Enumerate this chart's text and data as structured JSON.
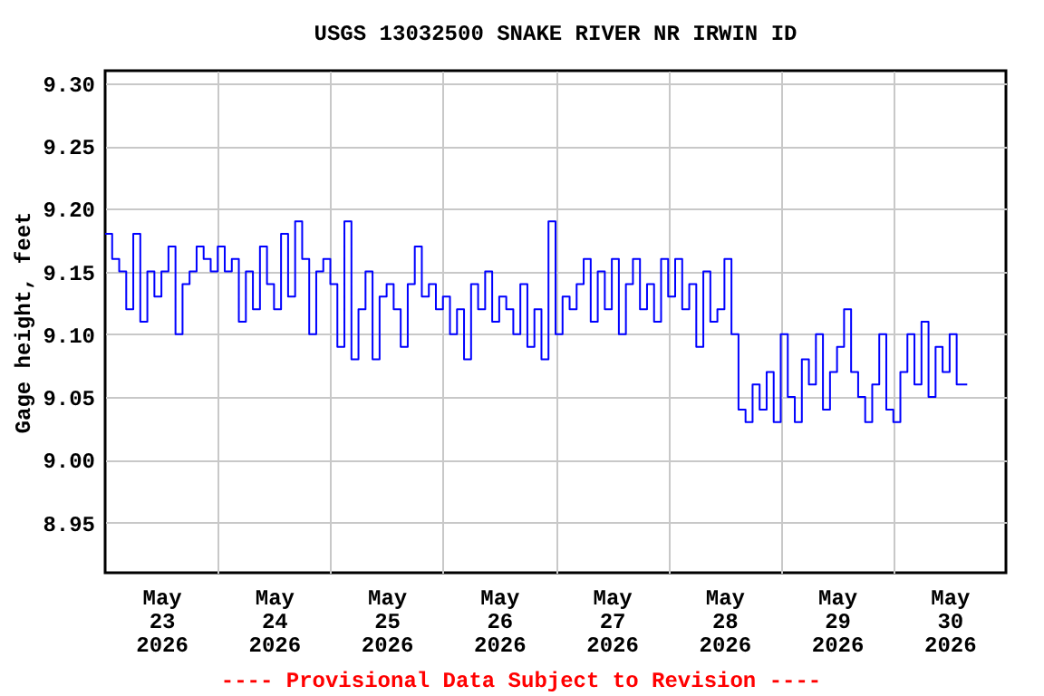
{
  "chart_data": {
    "type": "step",
    "title": "USGS 13032500 SNAKE RIVER NR IRWIN ID",
    "ylabel": "Gage height, feet",
    "annotations": [
      "---- Provisional Data Subject to Revision ----"
    ],
    "ylim": [
      8.91,
      9.31
    ],
    "yticks": [
      {
        "value": 8.95,
        "label": "8.95"
      },
      {
        "value": 9.0,
        "label": "9.00"
      },
      {
        "value": 9.05,
        "label": "9.05"
      },
      {
        "value": 9.1,
        "label": "9.10"
      },
      {
        "value": 9.15,
        "label": "9.15"
      },
      {
        "value": 9.2,
        "label": "9.20"
      },
      {
        "value": 9.25,
        "label": "9.25"
      },
      {
        "value": 9.3,
        "label": "9.30"
      }
    ],
    "xlim": [
      "2026-05-23T00:00",
      "2026-05-31T00:00"
    ],
    "xticks": [
      {
        "value": "2026-05-23T12:00",
        "label": "May\n23\n2026"
      },
      {
        "value": "2026-05-24T00:00",
        "label": null
      },
      {
        "value": "2026-05-24T12:00",
        "label": "May\n24\n2026"
      },
      {
        "value": "2026-05-25T00:00",
        "label": null
      },
      {
        "value": "2026-05-25T12:00",
        "label": "May\n25\n2026"
      },
      {
        "value": "2026-05-26T00:00",
        "label": null
      },
      {
        "value": "2026-05-26T12:00",
        "label": "May\n26\n2026"
      },
      {
        "value": "2026-05-27T00:00",
        "label": null
      },
      {
        "value": "2026-05-27T12:00",
        "label": "May\n27\n2026"
      },
      {
        "value": "2026-05-28T00:00",
        "label": null
      },
      {
        "value": "2026-05-28T12:00",
        "label": "May\n28\n2026"
      },
      {
        "value": "2026-05-29T00:00",
        "label": null
      },
      {
        "value": "2026-05-29T12:00",
        "label": "May\n29\n2026"
      },
      {
        "value": "2026-05-30T00:00",
        "label": null
      },
      {
        "value": "2026-05-30T12:00",
        "label": "May\n30\n2026"
      }
    ],
    "grid": true,
    "series": [
      {
        "color": "#0000ff",
        "x": [
          "2026-05-23T00:00",
          "2026-05-23T01:30",
          "2026-05-23T03:00",
          "2026-05-23T04:30",
          "2026-05-23T06:00",
          "2026-05-23T07:30",
          "2026-05-23T09:00",
          "2026-05-23T10:30",
          "2026-05-23T12:00",
          "2026-05-23T13:30",
          "2026-05-23T15:00",
          "2026-05-23T16:30",
          "2026-05-23T18:00",
          "2026-05-23T19:30",
          "2026-05-23T21:00",
          "2026-05-23T22:30",
          "2026-05-24T00:00",
          "2026-05-24T01:30",
          "2026-05-24T03:00",
          "2026-05-24T04:30",
          "2026-05-24T06:00",
          "2026-05-24T07:30",
          "2026-05-24T09:00",
          "2026-05-24T10:30",
          "2026-05-24T12:00",
          "2026-05-24T13:30",
          "2026-05-24T15:00",
          "2026-05-24T16:30",
          "2026-05-24T18:00",
          "2026-05-24T19:30",
          "2026-05-24T21:00",
          "2026-05-24T22:30",
          "2026-05-25T00:00",
          "2026-05-25T01:30",
          "2026-05-25T03:00",
          "2026-05-25T04:30",
          "2026-05-25T06:00",
          "2026-05-25T07:30",
          "2026-05-25T09:00",
          "2026-05-25T10:30",
          "2026-05-25T12:00",
          "2026-05-25T13:30",
          "2026-05-25T15:00",
          "2026-05-25T16:30",
          "2026-05-25T18:00",
          "2026-05-25T19:30",
          "2026-05-25T21:00",
          "2026-05-25T22:30",
          "2026-05-26T00:00",
          "2026-05-26T01:30",
          "2026-05-26T03:00",
          "2026-05-26T04:30",
          "2026-05-26T06:00",
          "2026-05-26T07:30",
          "2026-05-26T09:00",
          "2026-05-26T10:30",
          "2026-05-26T12:00",
          "2026-05-26T13:30",
          "2026-05-26T15:00",
          "2026-05-26T16:30",
          "2026-05-26T18:00",
          "2026-05-26T19:30",
          "2026-05-26T21:00",
          "2026-05-26T22:30",
          "2026-05-27T00:00",
          "2026-05-27T01:30",
          "2026-05-27T03:00",
          "2026-05-27T04:30",
          "2026-05-27T06:00",
          "2026-05-27T07:30",
          "2026-05-27T09:00",
          "2026-05-27T10:30",
          "2026-05-27T12:00",
          "2026-05-27T13:30",
          "2026-05-27T15:00",
          "2026-05-27T16:30",
          "2026-05-27T18:00",
          "2026-05-27T19:30",
          "2026-05-27T21:00",
          "2026-05-27T22:30",
          "2026-05-28T00:00",
          "2026-05-28T01:30",
          "2026-05-28T03:00",
          "2026-05-28T04:30",
          "2026-05-28T06:00",
          "2026-05-28T07:30",
          "2026-05-28T09:00",
          "2026-05-28T10:30",
          "2026-05-28T12:00",
          "2026-05-28T13:30",
          "2026-05-28T15:00",
          "2026-05-28T16:30",
          "2026-05-28T18:00",
          "2026-05-28T19:30",
          "2026-05-28T21:00",
          "2026-05-28T22:30",
          "2026-05-29T00:00",
          "2026-05-29T01:30",
          "2026-05-29T03:00",
          "2026-05-29T04:30",
          "2026-05-29T06:00",
          "2026-05-29T07:30",
          "2026-05-29T09:00",
          "2026-05-29T10:30",
          "2026-05-29T12:00",
          "2026-05-29T13:30",
          "2026-05-29T15:00",
          "2026-05-29T16:30",
          "2026-05-29T18:00",
          "2026-05-29T19:30",
          "2026-05-29T21:00",
          "2026-05-29T22:30",
          "2026-05-30T00:00",
          "2026-05-30T01:30",
          "2026-05-30T03:00",
          "2026-05-30T04:30",
          "2026-05-30T06:00",
          "2026-05-30T07:30",
          "2026-05-30T09:00",
          "2026-05-30T10:30",
          "2026-05-30T12:00",
          "2026-05-30T13:30",
          "2026-05-30T15:00",
          "2026-05-30T15:45"
        ],
        "values": [
          9.18,
          9.16,
          9.15,
          9.12,
          9.18,
          9.11,
          9.15,
          9.13,
          9.15,
          9.17,
          9.1,
          9.14,
          9.15,
          9.17,
          9.16,
          9.15,
          9.17,
          9.15,
          9.16,
          9.11,
          9.15,
          9.12,
          9.17,
          9.14,
          9.12,
          9.18,
          9.13,
          9.19,
          9.16,
          9.1,
          9.15,
          9.16,
          9.14,
          9.09,
          9.19,
          9.08,
          9.12,
          9.15,
          9.08,
          9.13,
          9.14,
          9.12,
          9.09,
          9.14,
          9.17,
          9.13,
          9.14,
          9.12,
          9.13,
          9.1,
          9.12,
          9.08,
          9.14,
          9.12,
          9.15,
          9.11,
          9.13,
          9.12,
          9.1,
          9.14,
          9.09,
          9.12,
          9.08,
          9.19,
          9.1,
          9.13,
          9.12,
          9.14,
          9.16,
          9.11,
          9.15,
          9.12,
          9.16,
          9.1,
          9.14,
          9.16,
          9.12,
          9.14,
          9.11,
          9.16,
          9.13,
          9.16,
          9.12,
          9.14,
          9.09,
          9.15,
          9.11,
          9.12,
          9.16,
          9.1,
          9.04,
          9.03,
          9.06,
          9.04,
          9.07,
          9.03,
          9.1,
          9.05,
          9.03,
          9.08,
          9.06,
          9.1,
          9.04,
          9.07,
          9.09,
          9.12,
          9.07,
          9.05,
          9.03,
          9.06,
          9.1,
          9.04,
          9.03,
          9.07,
          9.1,
          9.06,
          9.11,
          9.05,
          9.09,
          9.07,
          9.1,
          9.06,
          9.06,
          9.06
        ]
      }
    ]
  }
}
